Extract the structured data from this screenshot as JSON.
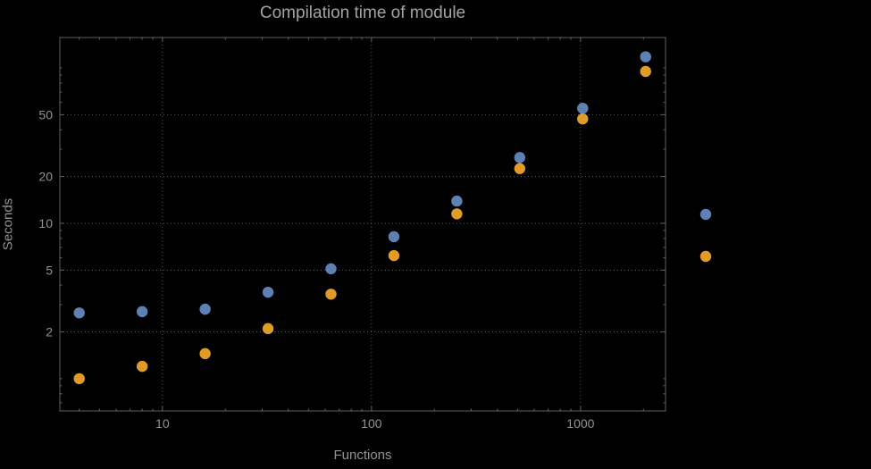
{
  "chart_data": {
    "type": "scatter",
    "title": "Compilation time of module",
    "xlabel": "Functions",
    "ylabel": "Seconds",
    "x_scale": "log",
    "y_scale": "log",
    "grid": true,
    "x_ticks": [
      10,
      100,
      1000
    ],
    "y_ticks": [
      2,
      5,
      10,
      20,
      50
    ],
    "x_range": [
      3.23,
      2550
    ],
    "y_range": [
      0.62,
      157
    ],
    "series": [
      {
        "name": "series-blue",
        "color": "#5e81b5",
        "points": [
          [
            4,
            2.65
          ],
          [
            8,
            2.7
          ],
          [
            16,
            2.8
          ],
          [
            32,
            3.6
          ],
          [
            64,
            5.1
          ],
          [
            128,
            8.2
          ],
          [
            256,
            13.9
          ],
          [
            512,
            26.5
          ],
          [
            1024,
            55
          ],
          [
            2048,
            118
          ]
        ]
      },
      {
        "name": "series-orange",
        "color": "#e09c24",
        "points": [
          [
            4,
            1.0
          ],
          [
            8,
            1.2
          ],
          [
            16,
            1.45
          ],
          [
            32,
            2.1
          ],
          [
            64,
            3.5
          ],
          [
            128,
            6.2
          ],
          [
            256,
            11.5
          ],
          [
            512,
            22.5
          ],
          [
            1024,
            47
          ],
          [
            2048,
            95
          ]
        ]
      }
    ],
    "legend": {
      "position": "right-outside",
      "markers": [
        {
          "color": "#5e81b5"
        },
        {
          "color": "#e09c24"
        }
      ]
    },
    "colors": {
      "background": "#000000",
      "frame": "#616161",
      "grid": "#5a5a5a",
      "title": "#a3a3a3",
      "tick_labels": "#929292",
      "axis_labels": "#929292"
    }
  }
}
